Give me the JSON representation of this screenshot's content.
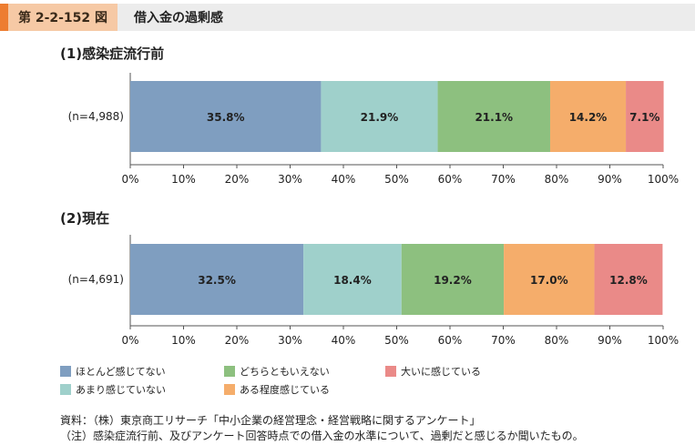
{
  "header": {
    "figure_no": "第 2-2-152 図",
    "figure_title": "借入金の過剰感"
  },
  "colors": {
    "accent": "#ed7d31",
    "series": [
      "#7f9ec0",
      "#9fd0cb",
      "#8dc07f",
      "#f5ad6b",
      "#ea8a88"
    ]
  },
  "chart_data": [
    {
      "type": "bar",
      "orientation": "horizontal-stacked-percent",
      "title": "(1)感染症流行前",
      "categories": [
        "(n=4,988)"
      ],
      "xlim": [
        0,
        100
      ],
      "ticks": [
        "0%",
        "10%",
        "20%",
        "30%",
        "40%",
        "50%",
        "60%",
        "70%",
        "80%",
        "90%",
        "100%"
      ],
      "series": [
        {
          "name": "ほとんど感じてない",
          "values": [
            35.8
          ],
          "label": "35.8%"
        },
        {
          "name": "あまり感じていない",
          "values": [
            21.9
          ],
          "label": "21.9%"
        },
        {
          "name": "どちらともいえない",
          "values": [
            21.1
          ],
          "label": "21.1%"
        },
        {
          "name": "ある程度感じている",
          "values": [
            14.2
          ],
          "label": "14.2%"
        },
        {
          "name": "大いに感じている",
          "values": [
            7.1
          ],
          "label": "7.1%"
        }
      ]
    },
    {
      "type": "bar",
      "orientation": "horizontal-stacked-percent",
      "title": "(2)現在",
      "categories": [
        "(n=4,691)"
      ],
      "xlim": [
        0,
        100
      ],
      "ticks": [
        "0%",
        "10%",
        "20%",
        "30%",
        "40%",
        "50%",
        "60%",
        "70%",
        "80%",
        "90%",
        "100%"
      ],
      "series": [
        {
          "name": "ほとんど感じてない",
          "values": [
            32.5
          ],
          "label": "32.5%"
        },
        {
          "name": "あまり感じていない",
          "values": [
            18.4
          ],
          "label": "18.4%"
        },
        {
          "name": "どちらともいえない",
          "values": [
            19.2
          ],
          "label": "19.2%"
        },
        {
          "name": "ある程度感じている",
          "values": [
            17.0
          ],
          "label": "17.0%"
        },
        {
          "name": "大いに感じている",
          "values": [
            12.8
          ],
          "label": "12.8%"
        }
      ]
    }
  ],
  "legend": [
    {
      "label": "ほとんど感じてない",
      "color": "#7f9ec0"
    },
    {
      "label": "どちらともいえない",
      "color": "#8dc07f"
    },
    {
      "label": "大いに感じている",
      "color": "#ea8a88"
    },
    {
      "label": "あまり感じていない",
      "color": "#9fd0cb"
    },
    {
      "label": "ある程度感じている",
      "color": "#f5ad6b"
    }
  ],
  "notes": {
    "source": "資料：（株）東京商工リサーチ「中小企業の経営理念・経営戦略に関するアンケート」",
    "note": "（注）感染症流行前、及びアンケート回答時点での借入金の水準について、過剰だと感じるか聞いたもの。"
  }
}
